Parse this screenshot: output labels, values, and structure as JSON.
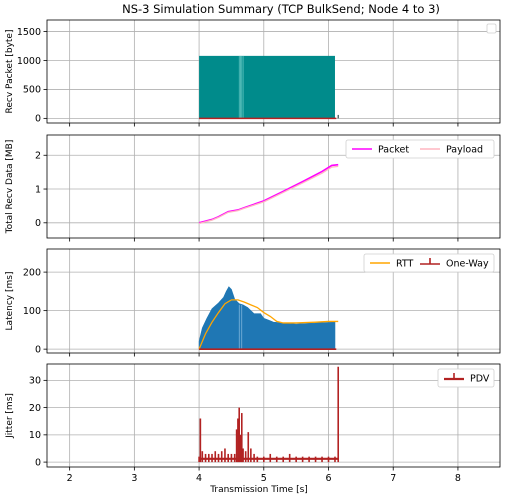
{
  "figure": {
    "title": "NS-3 Simulation Summary (TCP BulkSend; Node 4 to 3)",
    "xlabel": "Transmission Time [s]"
  },
  "chart_data": [
    {
      "id": "recv",
      "type": "bar",
      "ylabel": "Recv Packet [byte]",
      "xlim": [
        1.65,
        8.65
      ],
      "ylim": [
        -80,
        1700
      ],
      "xticks": [
        2,
        3,
        4,
        5,
        6,
        7,
        8
      ],
      "yticks": [
        0,
        500,
        1000,
        1500
      ],
      "grid": true,
      "legend": {
        "placement": "top-right",
        "entries": []
      },
      "color": "#008b8b",
      "series": [
        {
          "kind": "bars",
          "color": "#008b8b",
          "x": [
            4.0,
            4.62,
            4.64,
            4.66,
            4.68,
            6.1
          ],
          "y": [
            1080,
            1080,
            1080,
            1080,
            1080,
            1080
          ]
        },
        {
          "kind": "baseline",
          "color": "#b22222",
          "x": [
            4.0,
            6.12
          ],
          "y": [
            0,
            0
          ]
        },
        {
          "kind": "tail",
          "color": "#2f4f4f",
          "x": [
            6.15,
            6.15
          ],
          "y": [
            0,
            60
          ]
        }
      ]
    },
    {
      "id": "total",
      "type": "line",
      "ylabel": "Total Recv Data [MB]",
      "xlim": [
        1.65,
        8.65
      ],
      "ylim": [
        -0.45,
        2.6
      ],
      "xticks": [
        2,
        3,
        4,
        5,
        6,
        7,
        8
      ],
      "yticks": [
        0,
        1,
        2
      ],
      "grid": true,
      "legend": {
        "placement": "top-right",
        "entries": [
          "Packet",
          "Payload"
        ]
      },
      "series": [
        {
          "name": "Packet",
          "color": "#ff00ff",
          "x": [
            4.0,
            4.2,
            4.3,
            4.45,
            4.6,
            4.7,
            5.0,
            5.3,
            5.6,
            5.9,
            6.05,
            6.15
          ],
          "y": [
            0.0,
            0.1,
            0.18,
            0.33,
            0.38,
            0.45,
            0.65,
            0.93,
            1.22,
            1.52,
            1.7,
            1.72
          ]
        },
        {
          "name": "Payload",
          "color": "#ffb6c1",
          "x": [
            4.0,
            4.2,
            4.3,
            4.45,
            4.6,
            4.7,
            5.0,
            5.3,
            5.6,
            5.9,
            6.05,
            6.15
          ],
          "y": [
            -0.02,
            0.08,
            0.16,
            0.31,
            0.36,
            0.43,
            0.62,
            0.9,
            1.18,
            1.47,
            1.65,
            1.67
          ]
        }
      ]
    },
    {
      "id": "latency",
      "type": "area",
      "ylabel": "Latency [ms]",
      "xlim": [
        1.65,
        8.65
      ],
      "ylim": [
        -10,
        260
      ],
      "xticks": [
        2,
        3,
        4,
        5,
        6,
        7,
        8
      ],
      "yticks": [
        0,
        100,
        200
      ],
      "grid": true,
      "legend": {
        "placement": "top-right",
        "entries": [
          "RTT",
          "One-Way"
        ]
      },
      "series": [
        {
          "name": "One-Way",
          "kind": "area",
          "color": "#1f77b4",
          "x": [
            4.0,
            4.05,
            4.12,
            4.2,
            4.3,
            4.38,
            4.42,
            4.46,
            4.5,
            4.55,
            4.62,
            4.68,
            4.75,
            4.85,
            4.95,
            5.0,
            5.08,
            5.15,
            5.3,
            5.5,
            5.8,
            6.1
          ],
          "y": [
            20,
            55,
            80,
            105,
            120,
            135,
            150,
            162,
            155,
            130,
            118,
            115,
            108,
            92,
            92,
            80,
            75,
            70,
            68,
            65,
            68,
            70
          ]
        },
        {
          "name": "RTT",
          "kind": "line",
          "color": "#ffa500",
          "x": [
            4.0,
            4.1,
            4.2,
            4.3,
            4.4,
            4.5,
            4.6,
            4.7,
            4.8,
            4.9,
            5.0,
            5.1,
            5.2,
            5.3,
            5.5,
            5.8,
            6.0,
            6.15
          ],
          "y": [
            0,
            40,
            70,
            95,
            118,
            128,
            128,
            122,
            115,
            108,
            95,
            85,
            72,
            68,
            68,
            70,
            72,
            72
          ]
        },
        {
          "name": "One-Way baseline",
          "kind": "baseline",
          "color": "#b22222",
          "x": [
            4.0,
            6.12
          ],
          "y": [
            0,
            0
          ]
        }
      ]
    },
    {
      "id": "jitter",
      "type": "bar",
      "ylabel": "Jitter [ms]",
      "xlim": [
        1.65,
        8.65
      ],
      "ylim": [
        -1.8,
        36
      ],
      "xticks": [
        2,
        3,
        4,
        5,
        6,
        7,
        8
      ],
      "xticklabels": [
        "2",
        "3",
        "4",
        "5",
        "6",
        "7",
        "8"
      ],
      "yticks": [
        0,
        10,
        20,
        30
      ],
      "grid": true,
      "legend": {
        "placement": "top-right",
        "entries": [
          "PDV"
        ]
      },
      "series": [
        {
          "name": "PDV",
          "color": "#b22222",
          "x": [
            4.0,
            4.02,
            4.05,
            4.1,
            4.15,
            4.2,
            4.25,
            4.3,
            4.35,
            4.4,
            4.45,
            4.5,
            4.55,
            4.58,
            4.6,
            4.62,
            4.64,
            4.66,
            4.68,
            4.72,
            4.76,
            4.8,
            4.85,
            4.9,
            5.0,
            5.1,
            5.2,
            5.3,
            5.4,
            5.5,
            5.6,
            5.7,
            5.8,
            5.9,
            6.0,
            6.1,
            6.15
          ],
          "y": [
            2,
            16,
            4,
            3,
            3,
            3,
            4,
            3,
            4,
            5,
            3,
            3,
            3,
            12,
            16,
            20,
            10,
            18,
            5,
            4,
            11,
            5,
            3,
            2,
            2,
            3,
            2,
            2,
            3,
            2,
            2,
            2,
            2,
            2,
            2,
            2,
            35
          ]
        }
      ]
    }
  ]
}
